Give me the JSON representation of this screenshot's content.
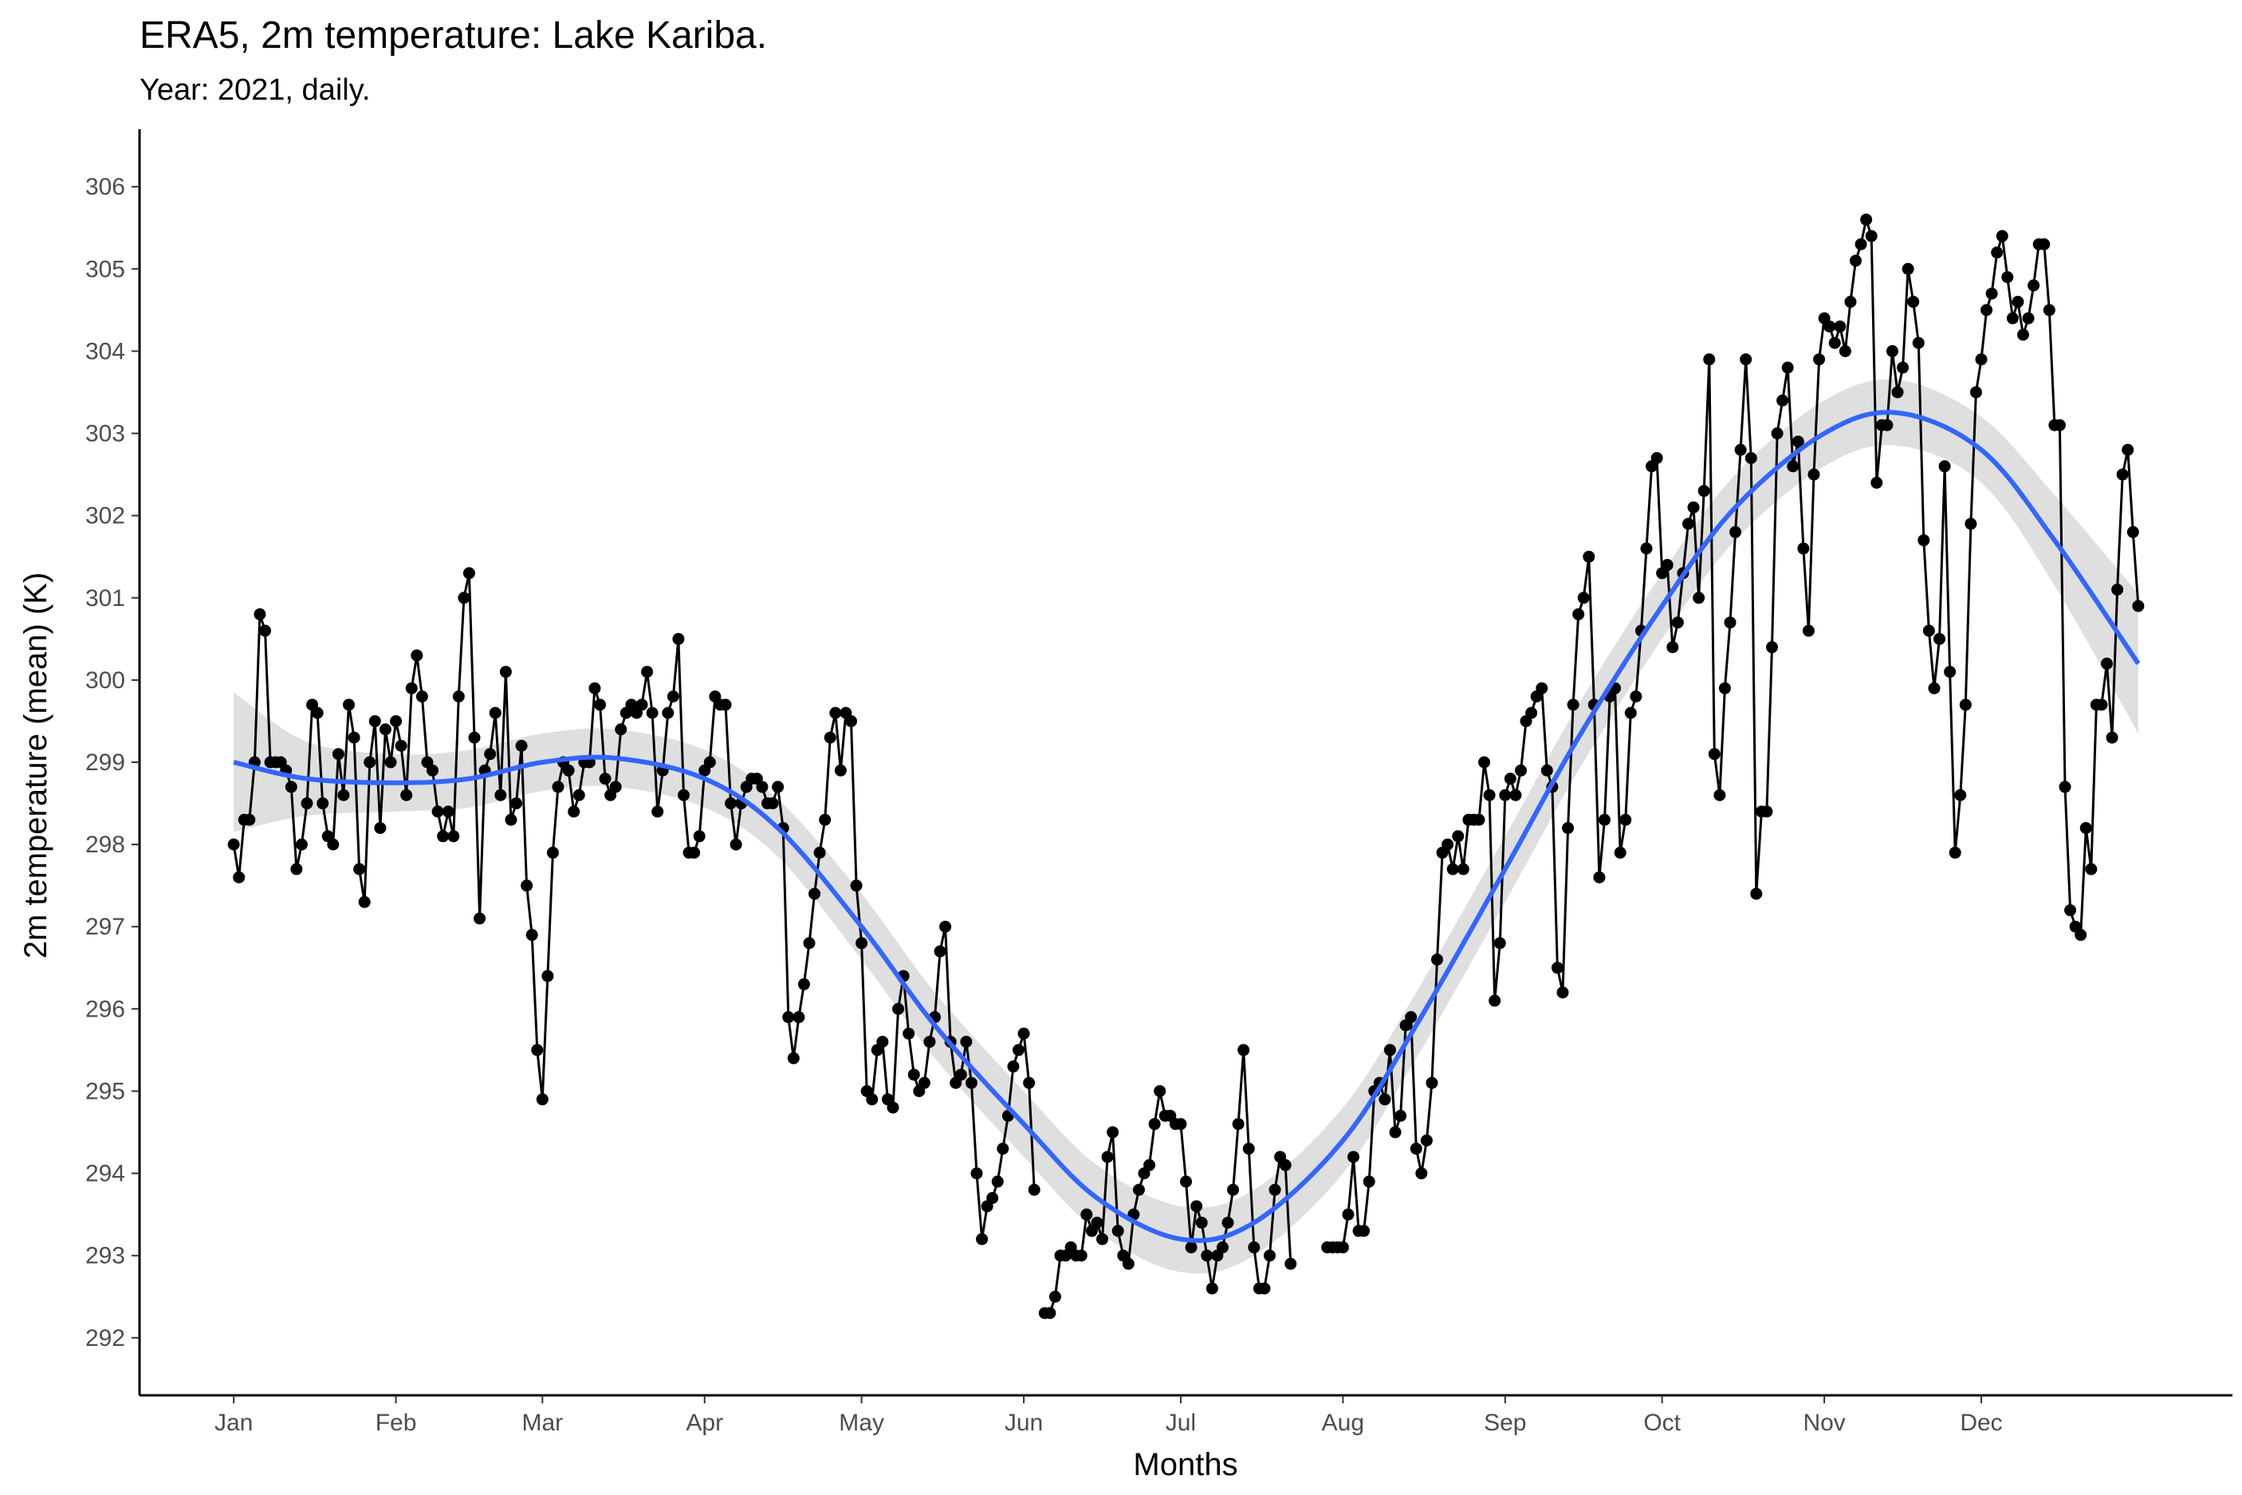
{
  "chart_data": {
    "type": "line",
    "title": "ERA5, 2m temperature: Lake Kariba.",
    "subtitle": "Year: 2021, daily.",
    "x_label": "Months",
    "y_label": "2m temperature (mean) (K)",
    "color": "#000000",
    "x": [
      1,
      2,
      3,
      4,
      5,
      6,
      7,
      8,
      9,
      10,
      11,
      12,
      13,
      14,
      15,
      16,
      17,
      18,
      19,
      20,
      21,
      22,
      23,
      24,
      25,
      26,
      27,
      28,
      29,
      30,
      31,
      32,
      33,
      34,
      35,
      36,
      37,
      38,
      39,
      40,
      41,
      42,
      43,
      44,
      45,
      46,
      47,
      48,
      49,
      50,
      51,
      52,
      53,
      54,
      55,
      56,
      57,
      58,
      59,
      60,
      61,
      62,
      63,
      64,
      65,
      66,
      67,
      68,
      69,
      70,
      71,
      72,
      73,
      74,
      75,
      76,
      77,
      78,
      79,
      80,
      81,
      82,
      83,
      84,
      85,
      86,
      87,
      88,
      89,
      90,
      91,
      92,
      93,
      94,
      95,
      96,
      97,
      98,
      99,
      100,
      101,
      102,
      103,
      104,
      105,
      106,
      107,
      108,
      109,
      110,
      111,
      112,
      113,
      114,
      115,
      116,
      117,
      118,
      119,
      120,
      121,
      122,
      123,
      124,
      125,
      126,
      127,
      128,
      129,
      130,
      131,
      132,
      133,
      134,
      135,
      136,
      137,
      138,
      139,
      140,
      141,
      142,
      143,
      144,
      145,
      146,
      147,
      148,
      149,
      150,
      151,
      152,
      153,
      154,
      155,
      156,
      157,
      158,
      159,
      160,
      161,
      162,
      163,
      164,
      165,
      166,
      167,
      168,
      169,
      170,
      171,
      172,
      173,
      174,
      175,
      176,
      177,
      178,
      179,
      180,
      181,
      182,
      183,
      184,
      185,
      186,
      187,
      188,
      189,
      190,
      191,
      192,
      193,
      194,
      195,
      196,
      197,
      198,
      199,
      200,
      201,
      202,
      203,
      204,
      205,
      206,
      207,
      208,
      209,
      210,
      211,
      212,
      213,
      214,
      215,
      216,
      217,
      218,
      219,
      220,
      221,
      222,
      223,
      224,
      225,
      226,
      227,
      228,
      229,
      230,
      231,
      232,
      233,
      234,
      235,
      236,
      237,
      238,
      239,
      240,
      241,
      242,
      243,
      244,
      245,
      246,
      247,
      248,
      249,
      250,
      251,
      252,
      253,
      254,
      255,
      256,
      257,
      258,
      259,
      260,
      261,
      262,
      263,
      264,
      265,
      266,
      267,
      268,
      269,
      270,
      271,
      272,
      273,
      274,
      275,
      276,
      277,
      278,
      279,
      280,
      281,
      282,
      283,
      284,
      285,
      286,
      287,
      288,
      289,
      290,
      291,
      292,
      293,
      294,
      295,
      296,
      297,
      298,
      299,
      300,
      301,
      302,
      303,
      304,
      305,
      306,
      307,
      308,
      309,
      310,
      311,
      312,
      313,
      314,
      315,
      316,
      317,
      318,
      319,
      320,
      321,
      322,
      323,
      324,
      325,
      326,
      327,
      328,
      329,
      330,
      331,
      332,
      333,
      334,
      335,
      336,
      337,
      338,
      339,
      340,
      341,
      342,
      343,
      344,
      345,
      346,
      347,
      348,
      349,
      350,
      351,
      352,
      353,
      354,
      355,
      356,
      357,
      358,
      359,
      360,
      361,
      362,
      363,
      364,
      365
    ],
    "values": [
      298.0,
      297.6,
      298.3,
      298.3,
      299.0,
      300.8,
      300.6,
      299.0,
      299.0,
      299.0,
      298.9,
      298.7,
      297.7,
      298.0,
      298.5,
      299.7,
      299.6,
      298.5,
      298.1,
      298.0,
      299.1,
      298.6,
      299.7,
      299.3,
      297.7,
      297.3,
      299.0,
      299.5,
      298.2,
      299.4,
      299.0,
      299.5,
      299.2,
      298.6,
      299.9,
      300.3,
      299.8,
      299.0,
      298.9,
      298.4,
      298.1,
      298.4,
      298.1,
      299.8,
      301.0,
      301.3,
      299.3,
      297.1,
      298.9,
      299.1,
      299.6,
      298.6,
      300.1,
      298.3,
      298.5,
      299.2,
      297.5,
      296.9,
      295.5,
      294.9,
      296.4,
      297.9,
      298.7,
      299.0,
      298.9,
      298.4,
      298.6,
      299.0,
      299.0,
      299.9,
      299.7,
      298.8,
      298.6,
      298.7,
      299.4,
      299.6,
      299.7,
      299.6,
      299.7,
      300.1,
      299.6,
      298.4,
      298.9,
      299.6,
      299.8,
      300.5,
      298.6,
      297.9,
      297.9,
      298.1,
      298.9,
      299.0,
      299.8,
      299.7,
      299.7,
      298.5,
      298.0,
      298.5,
      298.7,
      298.8,
      298.8,
      298.7,
      298.5,
      298.5,
      298.7,
      298.2,
      295.9,
      295.4,
      295.9,
      296.3,
      296.8,
      297.4,
      297.9,
      298.3,
      299.3,
      299.6,
      298.9,
      299.6,
      299.5,
      297.5,
      296.8,
      295.0,
      294.9,
      295.5,
      295.6,
      294.9,
      294.8,
      296.0,
      296.4,
      295.7,
      295.2,
      295.0,
      295.1,
      295.6,
      295.9,
      296.7,
      297.0,
      295.6,
      295.1,
      295.2,
      295.6,
      295.1,
      294.0,
      293.2,
      293.6,
      293.7,
      293.9,
      294.3,
      294.7,
      295.3,
      295.5,
      295.7,
      295.1,
      293.8,
      null,
      292.3,
      292.3,
      292.5,
      293.0,
      293.0,
      293.1,
      293.0,
      293.0,
      293.5,
      293.3,
      293.4,
      293.2,
      294.2,
      294.5,
      293.3,
      293.0,
      292.9,
      293.5,
      293.8,
      294.0,
      294.1,
      294.6,
      295.0,
      294.7,
      294.7,
      294.6,
      294.6,
      293.9,
      293.1,
      293.6,
      293.4,
      293.0,
      292.6,
      293.0,
      293.1,
      293.4,
      293.8,
      294.6,
      295.5,
      294.3,
      293.1,
      292.6,
      292.6,
      293.0,
      293.8,
      294.2,
      294.1,
      292.9,
      null,
      null,
      null,
      null,
      null,
      null,
      293.1,
      293.1,
      293.1,
      293.1,
      293.5,
      294.2,
      293.3,
      293.3,
      293.9,
      295.0,
      295.1,
      294.9,
      295.5,
      294.5,
      294.7,
      295.8,
      295.9,
      294.3,
      294.0,
      294.4,
      295.1,
      296.6,
      297.9,
      298.0,
      297.7,
      298.1,
      297.7,
      298.3,
      298.3,
      298.3,
      299.0,
      298.6,
      296.1,
      296.8,
      298.6,
      298.8,
      298.6,
      298.9,
      299.5,
      299.6,
      299.8,
      299.9,
      298.9,
      298.7,
      296.5,
      296.2,
      298.2,
      299.7,
      300.8,
      301.0,
      301.5,
      299.7,
      297.6,
      298.3,
      299.8,
      299.9,
      297.9,
      298.3,
      299.6,
      299.8,
      300.6,
      301.6,
      302.6,
      302.7,
      301.3,
      301.4,
      300.4,
      300.7,
      301.3,
      301.9,
      302.1,
      301.0,
      302.3,
      303.9,
      299.1,
      298.6,
      299.9,
      300.7,
      301.8,
      302.8,
      303.9,
      302.7,
      297.4,
      298.4,
      298.4,
      300.4,
      303.0,
      303.4,
      303.8,
      302.6,
      302.9,
      301.6,
      300.6,
      302.5,
      303.9,
      304.4,
      304.3,
      304.1,
      304.3,
      304.0,
      304.6,
      305.1,
      305.3,
      305.6,
      305.4,
      302.4,
      303.1,
      303.1,
      304.0,
      303.5,
      303.8,
      305.0,
      304.6,
      304.1,
      301.7,
      300.6,
      299.9,
      300.5,
      302.6,
      300.1,
      297.9,
      298.6,
      299.7,
      301.9,
      303.5,
      303.9,
      304.5,
      304.7,
      305.2,
      305.4,
      304.9,
      304.4,
      304.6,
      304.2,
      304.4,
      304.8,
      305.3,
      305.3,
      304.5,
      303.1,
      303.1,
      298.7,
      297.2,
      297.0,
      296.9,
      298.2,
      297.7,
      299.7,
      299.7,
      300.2,
      299.3,
      301.1,
      302.5,
      302.8,
      301.8,
      300.9
    ],
    "smooth": {
      "color": "#3366ff",
      "band_color": "#d9d9d9",
      "x": [
        1,
        15,
        32,
        46,
        60,
        74,
        91,
        105,
        121,
        135,
        152,
        166,
        182,
        196,
        213,
        227,
        244,
        258,
        274,
        288,
        305,
        319,
        335,
        349,
        365
      ],
      "values": [
        299.0,
        298.8,
        298.75,
        298.8,
        299.0,
        299.05,
        298.8,
        298.2,
        297.0,
        295.8,
        294.6,
        293.7,
        293.2,
        293.4,
        294.4,
        295.8,
        297.7,
        299.3,
        300.9,
        302.1,
        303.0,
        303.25,
        302.8,
        301.7,
        300.2
      ],
      "lower": [
        298.15,
        298.35,
        298.4,
        298.45,
        298.65,
        298.7,
        298.45,
        297.85,
        296.6,
        295.4,
        294.2,
        293.3,
        292.8,
        293.0,
        294.0,
        295.4,
        297.3,
        298.9,
        300.5,
        301.7,
        302.6,
        302.85,
        302.4,
        301.15,
        299.35
      ],
      "upper": [
        299.85,
        299.25,
        299.1,
        299.15,
        299.35,
        299.4,
        299.15,
        298.55,
        297.4,
        296.2,
        295.0,
        294.1,
        293.6,
        293.8,
        294.8,
        296.2,
        298.1,
        299.7,
        301.3,
        302.5,
        303.4,
        303.65,
        303.2,
        302.25,
        301.05
      ]
    },
    "xlim": [
      -17,
      383
    ],
    "ylim": [
      291.3,
      306.7
    ],
    "xticks": [
      {
        "value": 1,
        "label": "Jan"
      },
      {
        "value": 32,
        "label": "Feb"
      },
      {
        "value": 60,
        "label": "Mar"
      },
      {
        "value": 91,
        "label": "Apr"
      },
      {
        "value": 121,
        "label": "May"
      },
      {
        "value": 152,
        "label": "Jun"
      },
      {
        "value": 182,
        "label": "Jul"
      },
      {
        "value": 213,
        "label": "Aug"
      },
      {
        "value": 244,
        "label": "Sep"
      },
      {
        "value": 274,
        "label": "Oct"
      },
      {
        "value": 305,
        "label": "Nov"
      },
      {
        "value": 335,
        "label": "Dec"
      }
    ],
    "yticks": [
      292,
      293,
      294,
      295,
      296,
      297,
      298,
      299,
      300,
      301,
      302,
      303,
      304,
      305,
      306
    ],
    "grid": false
  }
}
